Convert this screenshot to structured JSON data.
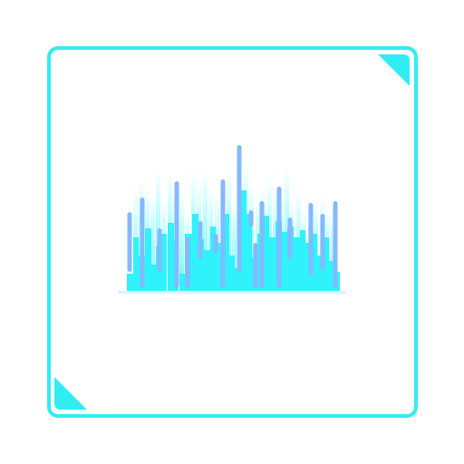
{
  "palette": {
    "frame": "#31ecf4",
    "bar_fill": "#2ff2fb",
    "bar_glow": "#95fbff",
    "bar_blue": "#85b8ff",
    "baseline": "#dfeeff",
    "background": "#ffffff"
  },
  "icons": {
    "frame": "rounded-square-frame-icon",
    "corner_top_right": "corner-triangle-icon",
    "corner_bottom_left": "corner-triangle-icon",
    "visual": "audio-waveform-icon"
  }
}
